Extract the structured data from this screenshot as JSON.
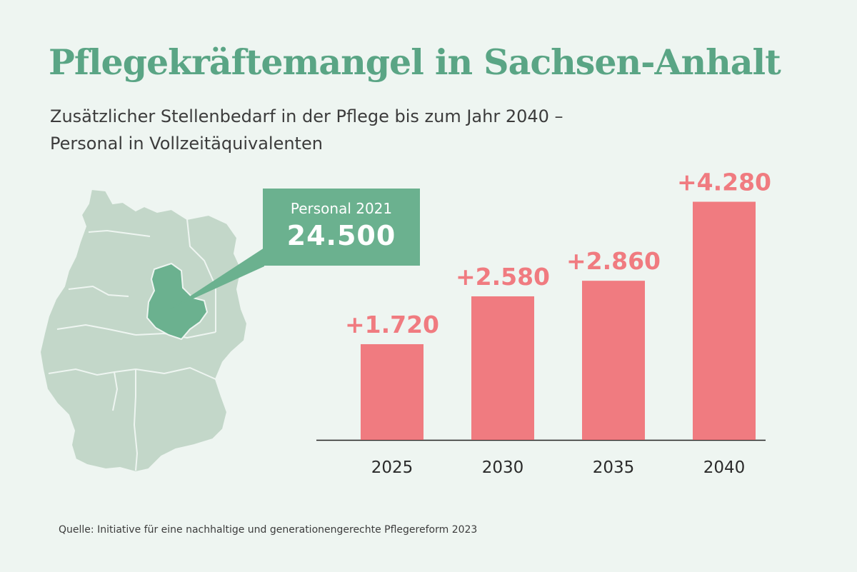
{
  "title": "Pflegekräftemangel in Sachsen-Anhalt",
  "subtitle_lines": [
    "Zusätzlicher Stellenbedarf in der Pflege bis zum Jahr 2040 –",
    "Personal in Vollzeitäquivalenten"
  ],
  "callout": {
    "label": "Personal 2021",
    "value": "24.500"
  },
  "map": {
    "highlight_region": "Sachsen-Anhalt"
  },
  "chart_data": {
    "type": "bar",
    "categories": [
      "2025",
      "2030",
      "2035",
      "2040"
    ],
    "values": [
      1720,
      2580,
      2860,
      4280
    ],
    "data_labels": [
      "+1.720",
      "+2.580",
      "+2.860",
      "+4.280"
    ],
    "ylim": [
      0,
      4800
    ],
    "grid": false
  },
  "colors": {
    "bar": "#f07b80",
    "label": "#f07b80",
    "accent": "#5aa585",
    "callout": "#6bb18f",
    "map_base": "#c3d7c9",
    "map_highlight": "#6bb18f",
    "background": "#eef5f1"
  },
  "source": "Quelle: Initiative für eine nachhaltige und generationengerechte Pflegereform 2023"
}
